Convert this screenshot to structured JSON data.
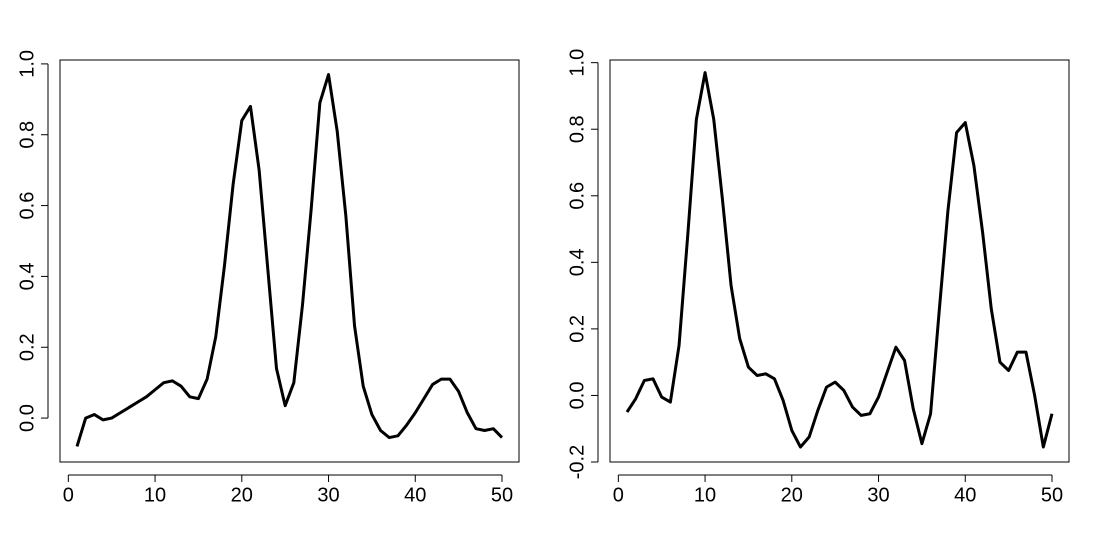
{
  "chart_data": [
    {
      "type": "line",
      "x": [
        1,
        2,
        3,
        4,
        5,
        6,
        7,
        8,
        9,
        10,
        11,
        12,
        13,
        14,
        15,
        16,
        17,
        18,
        19,
        20,
        21,
        22,
        23,
        24,
        25,
        26,
        27,
        28,
        29,
        30,
        31,
        32,
        33,
        34,
        35,
        36,
        37,
        38,
        39,
        40,
        41,
        42,
        43,
        44,
        45,
        46,
        47,
        48,
        49,
        50
      ],
      "series": [
        {
          "color": "#000000",
          "values": [
            -0.08,
            0.0,
            0.01,
            -0.005,
            0.0,
            0.015,
            0.03,
            0.045,
            0.06,
            0.08,
            0.1,
            0.105,
            0.09,
            0.06,
            0.055,
            0.11,
            0.23,
            0.43,
            0.66,
            0.84,
            0.88,
            0.7,
            0.42,
            0.14,
            0.035,
            0.1,
            0.32,
            0.59,
            0.89,
            0.97,
            0.81,
            0.57,
            0.26,
            0.09,
            0.01,
            -0.035,
            -0.055,
            -0.05,
            -0.02,
            0.015,
            0.055,
            0.095,
            0.11,
            0.11,
            0.075,
            0.015,
            -0.03,
            -0.035,
            -0.03,
            -0.055
          ]
        }
      ],
      "xlim": [
        -0.96,
        51.96
      ],
      "xticks": [
        0,
        10,
        20,
        30,
        40,
        50
      ],
      "ylim": [
        -0.124,
        1.011
      ],
      "yticks": [
        {
          "value": 0,
          "label": "0.0"
        },
        0.2,
        0.4,
        0.6,
        0.8,
        {
          "value": 1,
          "label": "1.0"
        }
      ]
    },
    {
      "type": "line",
      "x": [
        1,
        2,
        3,
        4,
        5,
        6,
        7,
        8,
        9,
        10,
        11,
        12,
        13,
        14,
        15,
        16,
        17,
        18,
        19,
        20,
        21,
        22,
        23,
        24,
        25,
        26,
        27,
        28,
        29,
        30,
        31,
        32,
        33,
        34,
        35,
        36,
        37,
        38,
        39,
        40,
        41,
        42,
        43,
        44,
        45,
        46,
        47,
        48,
        49,
        50
      ],
      "series": [
        {
          "color": "#000000",
          "values": [
            -0.05,
            -0.01,
            0.045,
            0.05,
            -0.005,
            -0.02,
            0.15,
            0.48,
            0.83,
            0.97,
            0.83,
            0.59,
            0.33,
            0.17,
            0.085,
            0.06,
            0.065,
            0.05,
            -0.015,
            -0.105,
            -0.155,
            -0.125,
            -0.045,
            0.025,
            0.04,
            0.015,
            -0.035,
            -0.06,
            -0.055,
            -0.005,
            0.07,
            0.145,
            0.105,
            -0.04,
            -0.145,
            -0.055,
            0.255,
            0.555,
            0.79,
            0.82,
            0.69,
            0.49,
            0.26,
            0.1,
            0.075,
            0.13,
            0.13,
            0.0,
            -0.155,
            -0.055
          ]
        }
      ],
      "xlim": [
        -0.96,
        51.96
      ],
      "xticks": [
        0,
        10,
        20,
        30,
        40,
        50
      ],
      "ylim": [
        -0.2,
        1.008
      ],
      "yticks": [
        -0.2,
        {
          "value": 0,
          "label": "0.0"
        },
        0.2,
        0.4,
        0.6,
        0.8,
        {
          "value": 1,
          "label": "1.0"
        }
      ]
    }
  ]
}
